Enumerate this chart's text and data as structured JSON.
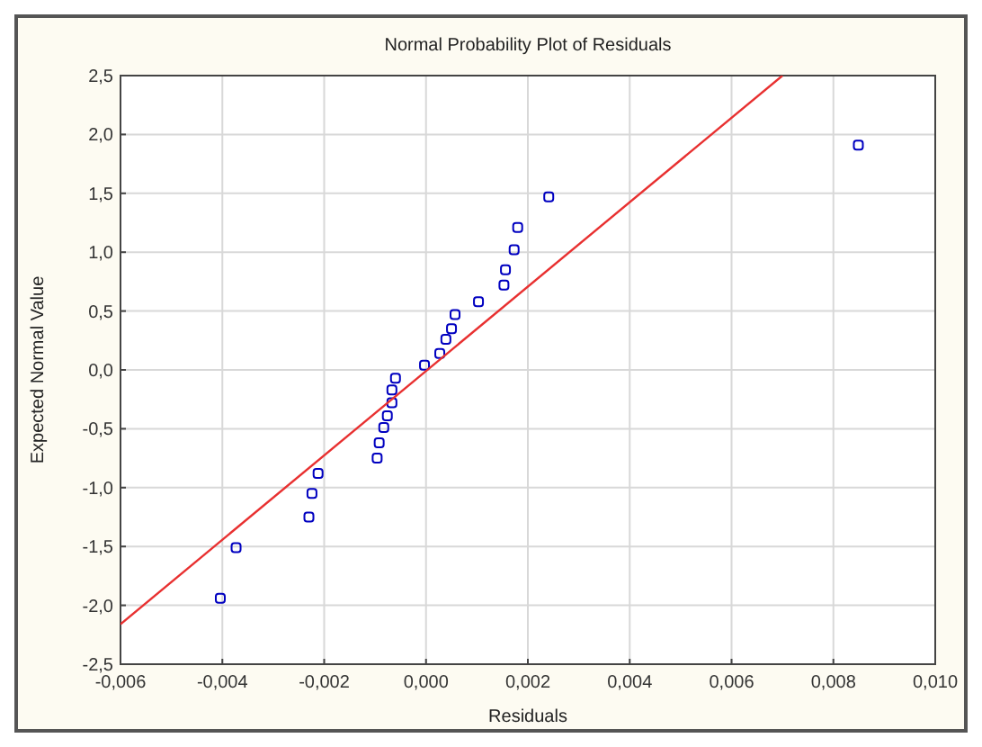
{
  "chart_data": {
    "type": "scatter",
    "title": "Normal Probability Plot of Residuals",
    "xlabel": "Residuals",
    "ylabel": "Expected Normal Value",
    "xlim": [
      -0.006,
      0.01
    ],
    "xticks": [
      {
        "value": -0.006,
        "label": "-0,006"
      },
      {
        "value": -0.004,
        "label": "-0,004"
      },
      {
        "value": -0.002,
        "label": "-0,002"
      },
      {
        "value": 0,
        "label": "0,000"
      },
      {
        "value": 0.002,
        "label": "0,002"
      },
      {
        "value": 0.004,
        "label": "0,004"
      },
      {
        "value": 0.006,
        "label": "0,006"
      },
      {
        "value": 0.008,
        "label": "0,008"
      },
      {
        "value": 0.01,
        "label": "0,010"
      }
    ],
    "ylim": [
      -2.5,
      2.5
    ],
    "yticks": [
      {
        "value": -2.5,
        "label": "-2,5"
      },
      {
        "value": -2,
        "label": "-2,0"
      },
      {
        "value": -1.5,
        "label": "-1,5"
      },
      {
        "value": -1,
        "label": "-1,0"
      },
      {
        "value": -0.5,
        "label": "-0,5"
      },
      {
        "value": 0,
        "label": "0,0"
      },
      {
        "value": 0.5,
        "label": "0,5"
      },
      {
        "value": 1,
        "label": "1,0"
      },
      {
        "value": 1.5,
        "label": "1,5"
      },
      {
        "value": 2,
        "label": "2,0"
      },
      {
        "value": 2.5,
        "label": "2,5"
      }
    ],
    "grid": true,
    "marker": "square",
    "series": [
      {
        "color": "#0000c0",
        "x": [
          -0.00404,
          -0.00373,
          -0.0023,
          -0.00224,
          -0.00212,
          -0.00096,
          -0.00092,
          -0.00083,
          -0.00076,
          -0.00067,
          -0.00067,
          -0.0006,
          -3e-05,
          0.00027,
          0.00039,
          0.0005,
          0.00057,
          0.00103,
          0.00153,
          0.00156,
          0.00173,
          0.0018,
          0.00241,
          0.00849
        ],
        "values": [
          -1.94,
          -1.51,
          -1.25,
          -1.05,
          -0.88,
          -0.75,
          -0.62,
          -0.49,
          -0.39,
          -0.28,
          -0.17,
          -0.07,
          0.04,
          0.14,
          0.26,
          0.35,
          0.47,
          0.58,
          0.72,
          0.85,
          1.02,
          1.21,
          1.47,
          1.91
        ]
      },
      {
        "type": "line",
        "marker": "none",
        "color": "#e83030",
        "x": [
          -0.006,
          0.007
        ],
        "values": [
          -2.16,
          2.5
        ]
      }
    ]
  }
}
